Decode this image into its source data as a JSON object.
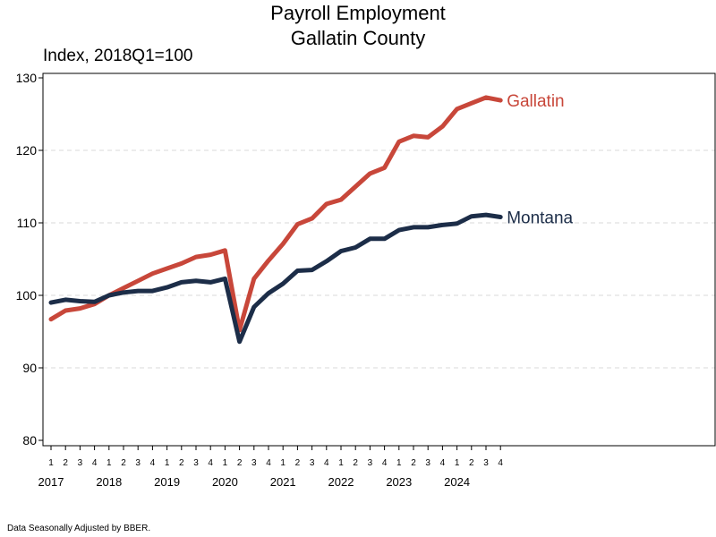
{
  "chart_data": {
    "type": "line",
    "title": "Payroll Employment",
    "subtitle": "Gallatin County",
    "ylabel": "Index, 2018Q1=100",
    "xlabel": "",
    "ylim": [
      80,
      130
    ],
    "yticks": [
      80,
      90,
      100,
      110,
      120,
      130
    ],
    "grid": true,
    "quarter_labels": [
      "1",
      "2",
      "3",
      "4",
      "1",
      "2",
      "3",
      "4",
      "1",
      "2",
      "3",
      "4",
      "1",
      "2",
      "3",
      "4",
      "1",
      "2",
      "3",
      "4",
      "1",
      "2",
      "3",
      "4",
      "1",
      "2",
      "3",
      "4",
      "1",
      "2",
      "3",
      "4"
    ],
    "year_labels": [
      "2017",
      "2018",
      "2019",
      "2020",
      "2021",
      "2022",
      "2023",
      "2024"
    ],
    "series": [
      {
        "name": "Gallatin",
        "color": "#c8473a",
        "values": [
          96.7,
          97.9,
          98.2,
          98.8,
          100.0,
          101.0,
          102.0,
          103.0,
          103.7,
          104.4,
          105.3,
          105.6,
          106.2,
          95.2,
          102.3,
          104.8,
          107.1,
          109.8,
          110.6,
          112.6,
          113.2,
          115.0,
          116.8,
          117.6,
          121.2,
          122.0,
          121.8,
          123.3,
          125.7,
          126.5,
          127.3,
          126.9
        ]
      },
      {
        "name": "Montana",
        "color": "#1c2d48",
        "values": [
          99.0,
          99.4,
          99.2,
          99.1,
          100.0,
          100.4,
          100.6,
          100.6,
          101.1,
          101.8,
          102.0,
          101.8,
          102.3,
          93.6,
          98.4,
          100.3,
          101.6,
          103.4,
          103.5,
          104.7,
          106.1,
          106.6,
          107.8,
          107.8,
          109.0,
          109.4,
          109.4,
          109.7,
          109.9,
          110.9,
          111.1,
          110.8
        ]
      }
    ]
  },
  "footnote": "Data Seasonally Adjusted by BBER."
}
